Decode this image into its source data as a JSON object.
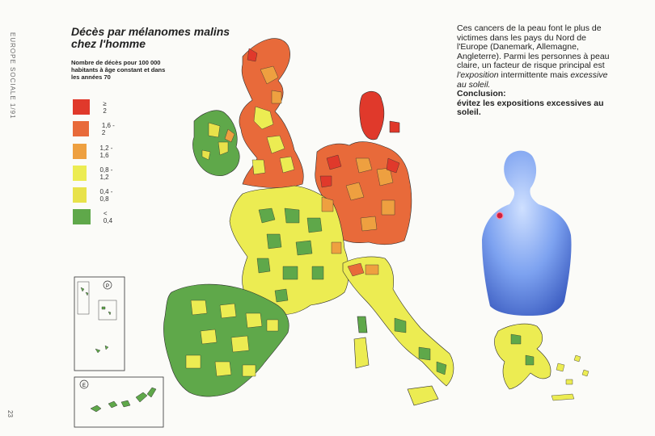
{
  "header": {
    "side_text": "EUROPE SOCIALE 1/91",
    "page_number": "23",
    "title": "Décès par mélanomes malins chez l'homme",
    "subtitle": "Nombre de décès pour 100 000 habitants à âge constant et dans les années 70"
  },
  "legend": [
    {
      "label": "≥ 2",
      "color": "#e0392b"
    },
    {
      "label": "1,6 - 2",
      "color": "#e86a3a"
    },
    {
      "label": "1,2 - 1,6",
      "color": "#eea040"
    },
    {
      "label": "0,8 - 1,2",
      "color": "#ecec52"
    },
    {
      "label": "0,4 - 0,8",
      "color": "#e8e24a"
    },
    {
      "label": "< 0,4",
      "color": "#5fa84a"
    }
  ],
  "inset_labels": {
    "portugal": "P",
    "spain": "E"
  },
  "caption": {
    "p1_a": "Ces cancers de la peau font le plus de victimes dans les pays du Nord de l'Europe (Danemark, Allemagne, Angleterre). Parmi les personnes à peau claire, un facteur de risque principal est ",
    "p1_em1": "l'exposition",
    "p1_b": " intermittente mais ",
    "p1_em2": "excessive au soleil.",
    "conclusion_heading": "Conclusion:",
    "conclusion_body": "évitez les expositions excessives au soleil."
  },
  "icons": {
    "figure": "human-torso-icon",
    "mole": "melanoma-spot-icon"
  }
}
